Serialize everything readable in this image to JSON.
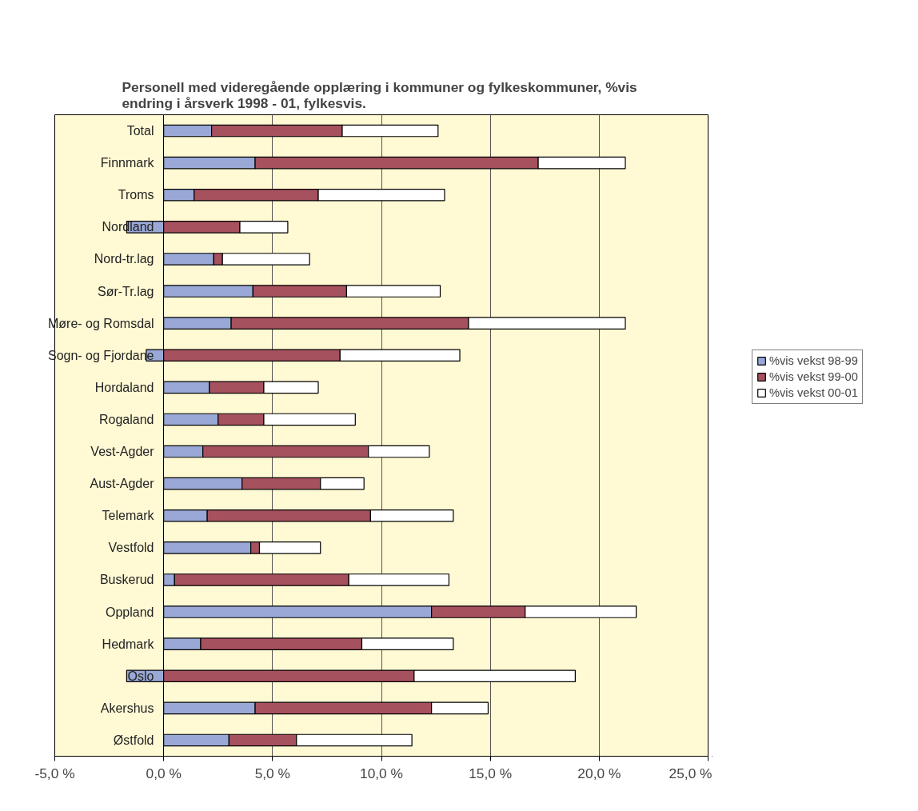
{
  "chart_data": {
    "type": "bar",
    "orientation": "horizontal",
    "stacked": true,
    "title": "Personell med videregående opplæring i  kommuner og fylkeskommuner, %vis\nendring i årsverk 1998 - 01, fylkesvis.",
    "categories": [
      "Total",
      "Finnmark",
      "Troms",
      "Nordland",
      "Nord-tr.lag",
      "Sør-Tr.lag",
      "Møre- og Romsdal",
      "Sogn- og Fjordane",
      "Hordaland",
      "Rogaland",
      "Vest-Agder",
      "Aust-Agder",
      "Telemark",
      "Vestfold",
      "Buskerud",
      "Oppland",
      "Hedmark",
      "Oslo",
      "Akershus",
      "Østfold"
    ],
    "series": [
      {
        "name": "%vis vekst 98-99",
        "color": "#99a8d6",
        "values": [
          2.2,
          4.2,
          1.4,
          -1.7,
          2.3,
          4.1,
          3.1,
          -0.8,
          2.1,
          2.5,
          1.8,
          3.6,
          2.0,
          4.0,
          0.5,
          12.3,
          1.7,
          -1.7,
          4.2,
          3.0
        ]
      },
      {
        "name": "%vis vekst 99-00",
        "color": "#a6515e",
        "values": [
          6.0,
          13.0,
          5.7,
          3.5,
          0.4,
          4.3,
          10.9,
          8.1,
          2.5,
          2.1,
          7.6,
          3.6,
          7.5,
          0.4,
          8.0,
          4.3,
          7.4,
          11.5,
          8.1,
          3.1
        ]
      },
      {
        "name": "%vis vekst 00-01",
        "color": "#ffffff",
        "values": [
          4.4,
          4.0,
          5.8,
          2.2,
          4.0,
          4.3,
          7.2,
          5.5,
          2.5,
          4.2,
          2.8,
          2.0,
          3.8,
          2.8,
          4.6,
          5.1,
          4.2,
          7.4,
          2.6,
          5.3
        ]
      }
    ],
    "xlim": [
      -5,
      25
    ],
    "xticks": [
      {
        "value": -5,
        "label": "-5,0 %"
      },
      {
        "value": 0,
        "label": "0,0 %"
      },
      {
        "value": 5,
        "label": "5,0 %"
      },
      {
        "value": 10,
        "label": "10,0 %"
      },
      {
        "value": 15,
        "label": "15,0 %"
      },
      {
        "value": 20,
        "label": "20,0 %"
      },
      {
        "value": 25,
        "label": "25,0 %"
      }
    ],
    "grid": "x",
    "legend": "right"
  }
}
